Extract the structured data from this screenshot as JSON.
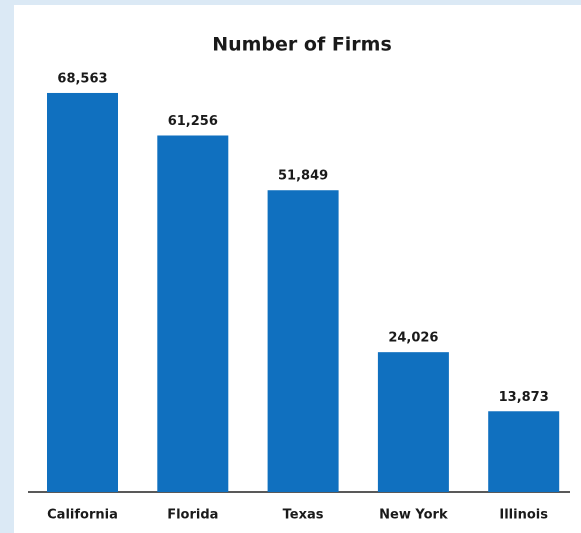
{
  "chart_data": {
    "type": "bar",
    "title": "Number of Firms",
    "categories": [
      "California",
      "Florida",
      "Texas",
      "New York",
      "Illinois"
    ],
    "values": [
      68563,
      61256,
      51849,
      24026,
      13873
    ],
    "value_labels": [
      "68,563",
      "61,256",
      "51,849",
      "24,026",
      "13,873"
    ],
    "color": "#1070bf"
  }
}
